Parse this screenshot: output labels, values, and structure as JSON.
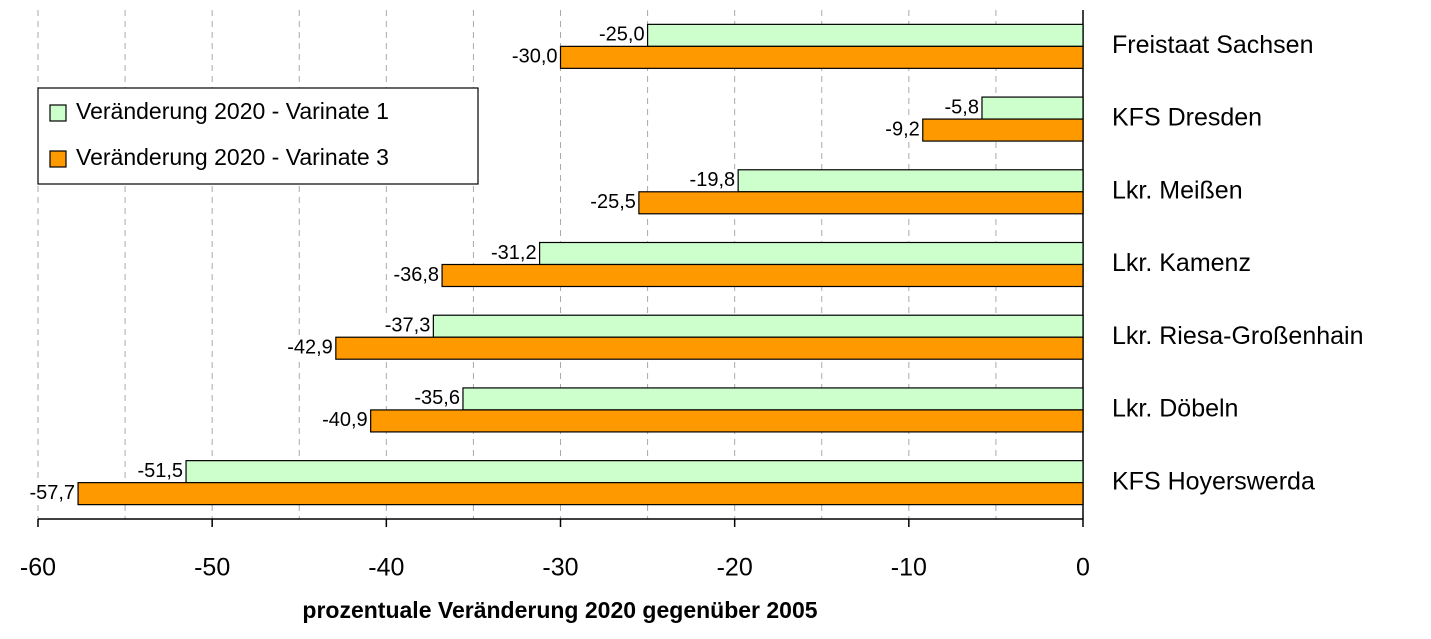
{
  "chart_data": {
    "type": "hbar",
    "xlabel": "prozentuale Veränderung 2020 gegenüber 2005",
    "categories": [
      "Freistaat Sachsen",
      "KFS Dresden",
      "Lkr. Meißen",
      "Lkr. Kamenz",
      "Lkr. Riesa-Großenhain",
      "Lkr. Döbeln",
      "KFS Hoyerswerda"
    ],
    "series": [
      {
        "name": "Veränderung 2020 - Varinate 1",
        "color": "#ccffcc",
        "values": [
          -25.0,
          -5.8,
          -19.8,
          -31.2,
          -37.3,
          -35.6,
          -51.5
        ],
        "value_labels": [
          "-25,0",
          "-5,8",
          "-19,8",
          "-31,2",
          "-37,3",
          "-35,6",
          "-51,5"
        ]
      },
      {
        "name": "Veränderung 2020 - Varinate 3",
        "color": "#ff9900",
        "values": [
          -30.0,
          -9.2,
          -25.5,
          -36.8,
          -42.9,
          -40.9,
          -57.7
        ],
        "value_labels": [
          "-30,0",
          "-9,2",
          "-25,5",
          "-36,8",
          "-42,9",
          "-40,9",
          "-57,7"
        ]
      }
    ],
    "xlim": [
      -60,
      0
    ],
    "xticks": [
      -60,
      -50,
      -40,
      -30,
      -20,
      -10,
      0
    ],
    "grid_lines": [
      -60,
      -55,
      -50,
      -45,
      -40,
      -35,
      -30,
      -25,
      -20,
      -15,
      -10,
      -5
    ],
    "grid": true,
    "legend": "upper left"
  }
}
